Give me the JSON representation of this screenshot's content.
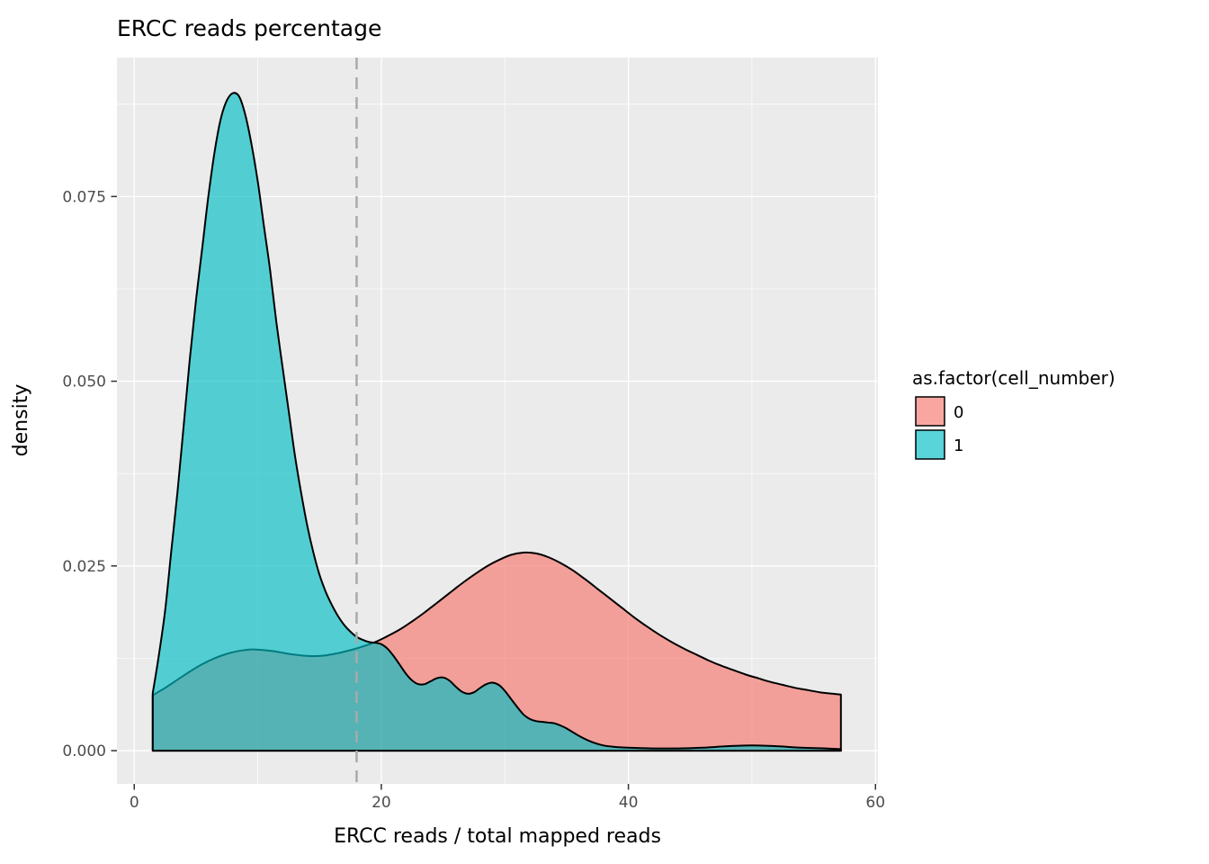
{
  "chart_data": {
    "type": "area",
    "subtype": "density",
    "title": "ERCC reads percentage",
    "xlabel": "ERCC reads / total mapped reads",
    "ylabel": "density",
    "xlim": [
      -1.4,
      60.2
    ],
    "ylim": [
      -0.0045,
      0.0938
    ],
    "grid": true,
    "x_ticks": [
      {
        "v": 0,
        "label": "0"
      },
      {
        "v": 20,
        "label": "20"
      },
      {
        "v": 40,
        "label": "40"
      },
      {
        "v": 60,
        "label": "60"
      }
    ],
    "x_minor": [
      10,
      30,
      50
    ],
    "y_ticks": [
      {
        "v": 0.0,
        "label": "0.000"
      },
      {
        "v": 0.025,
        "label": "0.025"
      },
      {
        "v": 0.05,
        "label": "0.050"
      },
      {
        "v": 0.075,
        "label": "0.075"
      }
    ],
    "y_minor": [
      0.0125,
      0.0375,
      0.0625,
      0.0875
    ],
    "vline": {
      "x": 18,
      "style": "dashed",
      "color": "#A9A9A9",
      "width": 2.5
    },
    "colors": {
      "panel_bg": "#EBEBEB",
      "grid": "#FFFFFF",
      "outline": "#000000",
      "tick_label": "#4D4D4D",
      "tick_mark": "#333333",
      "pink": "#F8766D",
      "teal": "#00BFC4"
    },
    "fill_opacity": 0.65,
    "legend": {
      "title": "as.factor(cell_number)",
      "position": "right",
      "entries": [
        {
          "label": "0",
          "color": "#F8766D"
        },
        {
          "label": "1",
          "color": "#00BFC4"
        }
      ]
    },
    "series": [
      {
        "name": "0",
        "cell_number": 0,
        "color": "#F8766D",
        "points": [
          [
            1.5,
            0.0075
          ],
          [
            2.5,
            0.0085
          ],
          [
            3.5,
            0.0096
          ],
          [
            4.5,
            0.0107
          ],
          [
            5.5,
            0.0117
          ],
          [
            6.5,
            0.0125
          ],
          [
            7.5,
            0.0131
          ],
          [
            8.5,
            0.0135
          ],
          [
            9.5,
            0.0137
          ],
          [
            10.5,
            0.0136
          ],
          [
            11.5,
            0.0134
          ],
          [
            12.5,
            0.0131
          ],
          [
            13.5,
            0.0129
          ],
          [
            14.5,
            0.0128
          ],
          [
            15.5,
            0.0129
          ],
          [
            16.5,
            0.0132
          ],
          [
            17.5,
            0.0136
          ],
          [
            18.5,
            0.0141
          ],
          [
            19.5,
            0.0147
          ],
          [
            20.5,
            0.0155
          ],
          [
            21.5,
            0.0164
          ],
          [
            22.5,
            0.0175
          ],
          [
            23.5,
            0.0187
          ],
          [
            24.5,
            0.02
          ],
          [
            25.5,
            0.0213
          ],
          [
            26.5,
            0.0226
          ],
          [
            27.5,
            0.0238
          ],
          [
            28.5,
            0.0249
          ],
          [
            29.5,
            0.0258
          ],
          [
            30.5,
            0.0265
          ],
          [
            31.5,
            0.0268
          ],
          [
            32.5,
            0.0267
          ],
          [
            33.5,
            0.0262
          ],
          [
            34.5,
            0.0254
          ],
          [
            35.5,
            0.0244
          ],
          [
            36.5,
            0.0232
          ],
          [
            37.5,
            0.0219
          ],
          [
            38.5,
            0.0206
          ],
          [
            39.5,
            0.0193
          ],
          [
            40.5,
            0.018
          ],
          [
            41.5,
            0.0168
          ],
          [
            42.5,
            0.0157
          ],
          [
            43.5,
            0.0147
          ],
          [
            44.5,
            0.0138
          ],
          [
            45.5,
            0.013
          ],
          [
            46.5,
            0.0122
          ],
          [
            47.5,
            0.0115
          ],
          [
            48.5,
            0.0109
          ],
          [
            49.5,
            0.0103
          ],
          [
            50.5,
            0.0098
          ],
          [
            51.5,
            0.0093
          ],
          [
            52.5,
            0.0089
          ],
          [
            53.5,
            0.0085
          ],
          [
            54.5,
            0.0082
          ],
          [
            55.5,
            0.0079
          ],
          [
            56.5,
            0.0077
          ],
          [
            57.2,
            0.0076
          ]
        ]
      },
      {
        "name": "1",
        "cell_number": 1,
        "color": "#00BFC4",
        "points": [
          [
            1.5,
            0.0078
          ],
          [
            2,
            0.013
          ],
          [
            2.5,
            0.019
          ],
          [
            3,
            0.027
          ],
          [
            3.5,
            0.035
          ],
          [
            4,
            0.044
          ],
          [
            4.5,
            0.053
          ],
          [
            5,
            0.061
          ],
          [
            5.5,
            0.068
          ],
          [
            6,
            0.075
          ],
          [
            6.5,
            0.081
          ],
          [
            7,
            0.0855
          ],
          [
            7.5,
            0.088
          ],
          [
            8,
            0.089
          ],
          [
            8.5,
            0.0885
          ],
          [
            9,
            0.086
          ],
          [
            9.5,
            0.082
          ],
          [
            10,
            0.077
          ],
          [
            10.5,
            0.071
          ],
          [
            11,
            0.065
          ],
          [
            11.5,
            0.058
          ],
          [
            12,
            0.052
          ],
          [
            12.5,
            0.046
          ],
          [
            13,
            0.04
          ],
          [
            13.5,
            0.035
          ],
          [
            14,
            0.0305
          ],
          [
            14.5,
            0.0268
          ],
          [
            15,
            0.0238
          ],
          [
            15.5,
            0.0215
          ],
          [
            16,
            0.0197
          ],
          [
            16.5,
            0.0182
          ],
          [
            17,
            0.017
          ],
          [
            17.5,
            0.0161
          ],
          [
            18,
            0.0154
          ],
          [
            18.5,
            0.015
          ],
          [
            19,
            0.0147
          ],
          [
            19.5,
            0.0146
          ],
          [
            20,
            0.0144
          ],
          [
            20.5,
            0.0138
          ],
          [
            21,
            0.0128
          ],
          [
            21.5,
            0.0116
          ],
          [
            22,
            0.0104
          ],
          [
            22.5,
            0.0095
          ],
          [
            23,
            0.009
          ],
          [
            23.5,
            0.009
          ],
          [
            24,
            0.0094
          ],
          [
            24.5,
            0.0098
          ],
          [
            25,
            0.0099
          ],
          [
            25.5,
            0.0095
          ],
          [
            26,
            0.0087
          ],
          [
            26.5,
            0.008
          ],
          [
            27,
            0.0077
          ],
          [
            27.5,
            0.0079
          ],
          [
            28,
            0.0085
          ],
          [
            28.5,
            0.009
          ],
          [
            29,
            0.0092
          ],
          [
            29.5,
            0.0089
          ],
          [
            30,
            0.0081
          ],
          [
            30.5,
            0.007
          ],
          [
            31,
            0.0059
          ],
          [
            31.5,
            0.0049
          ],
          [
            32,
            0.0043
          ],
          [
            32.5,
            0.004
          ],
          [
            33,
            0.0039
          ],
          [
            33.5,
            0.0038
          ],
          [
            34,
            0.0037
          ],
          [
            34.5,
            0.0034
          ],
          [
            35,
            0.003
          ],
          [
            36,
            0.002
          ],
          [
            37,
            0.0012
          ],
          [
            38,
            0.0007
          ],
          [
            39,
            0.0005
          ],
          [
            40,
            0.0004
          ],
          [
            42,
            0.0003
          ],
          [
            44,
            0.0003
          ],
          [
            46,
            0.0004
          ],
          [
            48,
            0.0006
          ],
          [
            50,
            0.0007
          ],
          [
            52,
            0.0006
          ],
          [
            54,
            0.0004
          ],
          [
            56,
            0.0003
          ],
          [
            57.2,
            0.0002
          ]
        ]
      }
    ]
  }
}
